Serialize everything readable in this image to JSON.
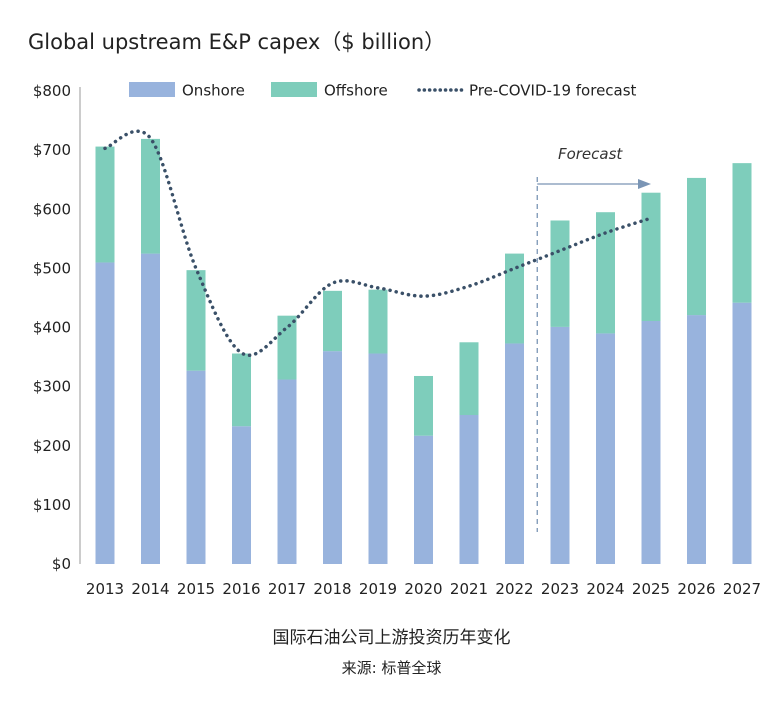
{
  "title": "Global upstream E&P capex（$ billion）",
  "caption": "国际石油公司上游投资历年变化",
  "source": "来源: 标普全球",
  "colors": {
    "onshore": "#98b3dd",
    "offshore": "#7ecdbb",
    "forecast_line": "#3a5068",
    "axis": "#999999",
    "divider": "#7a95b5"
  },
  "chart_data": {
    "type": "bar",
    "stacked": true,
    "categories": [
      "2013",
      "2014",
      "2015",
      "2016",
      "2017",
      "2018",
      "2019",
      "2020",
      "2021",
      "2022",
      "2023",
      "2024",
      "2025",
      "2026",
      "2027"
    ],
    "series": [
      {
        "name": "Onshore",
        "values": [
          510,
          525,
          327,
          233,
          312,
          360,
          356,
          217,
          252,
          373,
          401,
          390,
          411,
          421,
          442
        ]
      },
      {
        "name": "Offshore",
        "values": [
          196,
          194,
          170,
          123,
          108,
          102,
          108,
          101,
          123,
          152,
          180,
          205,
          217,
          232,
          236
        ]
      }
    ],
    "forecast_line": {
      "name": "Pre-COVID-19 forecast",
      "x": [
        2013,
        2014,
        2015,
        2016,
        2017,
        2018,
        2019,
        2020,
        2021,
        2022,
        2023,
        2024,
        2025
      ],
      "y": [
        703,
        720,
        500,
        357,
        400,
        475,
        467,
        453,
        470,
        500,
        530,
        560,
        585
      ]
    },
    "yticks": [
      "$0",
      "$100",
      "$200",
      "$300",
      "$400",
      "$500",
      "$600",
      "$700",
      "$800"
    ],
    "ylim": [
      0,
      800
    ],
    "annotation": "Forecast",
    "forecast_start_after": "2022",
    "legend_position": "top",
    "grid": false
  }
}
